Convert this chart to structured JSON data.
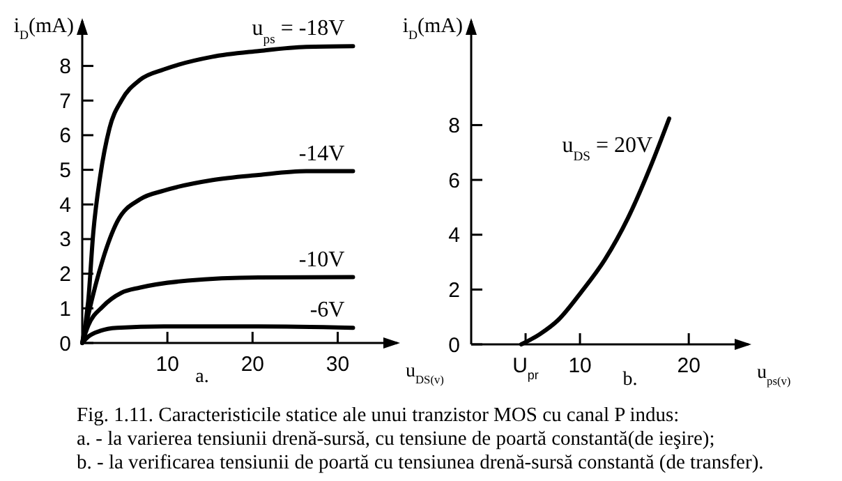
{
  "chart_data": [
    {
      "type": "line",
      "xlabel": "u$_{DS(v)}$",
      "ylabel": "i$_{D}$(mA)",
      "xlim": [
        0,
        37
      ],
      "ylim": [
        0,
        9.3
      ],
      "xticks": [
        10,
        20,
        30
      ],
      "yticks": [
        0,
        1,
        2,
        3,
        4,
        5,
        6,
        7,
        8
      ],
      "grid": false,
      "marker": "none",
      "line_style": "solid",
      "annotations": [
        "a."
      ],
      "series": [
        {
          "name": "u$_{ps}$ = -18V",
          "color": "#000000",
          "x": [
            0,
            0.7,
            1.3,
            2.1,
            3.2,
            4.6,
            6.8,
            9.6,
            15.2,
            20.7,
            26.3,
            31.8
          ],
          "values": [
            0,
            1.2,
            3.2,
            4.8,
            6.2,
            7.0,
            7.6,
            7.9,
            8.26,
            8.43,
            8.55,
            8.57
          ]
        },
        {
          "name": "-14V",
          "color": "#000000",
          "x": [
            0,
            0.7,
            2.4,
            4.1,
            6.8,
            9.6,
            15.2,
            20.7,
            26.3,
            31.8
          ],
          "values": [
            0,
            0.8,
            2.4,
            3.5,
            4.15,
            4.4,
            4.7,
            4.85,
            4.96,
            4.96
          ]
        },
        {
          "name": "-10V",
          "color": "#000000",
          "x": [
            0,
            0.7,
            2.4,
            4.6,
            6.8,
            12.4,
            20.7,
            31.8
          ],
          "values": [
            0,
            0.5,
            1.05,
            1.45,
            1.6,
            1.8,
            1.89,
            1.9
          ]
        },
        {
          "name": "-6V",
          "color": "#000000",
          "x": [
            0,
            0.7,
            2.1,
            4.1,
            9.6,
            20.7,
            31.8
          ],
          "values": [
            0,
            0.18,
            0.35,
            0.44,
            0.48,
            0.48,
            0.44
          ]
        }
      ]
    },
    {
      "type": "line",
      "xlabel": "u$_{ps(v)}$",
      "ylabel": "i$_{D}$(mA)",
      "xlim": [
        0,
        25.5
      ],
      "ylim": [
        0,
        11.8
      ],
      "xticks": [
        {
          "value": 5,
          "label": "U$_{pr}$"
        },
        10,
        20
      ],
      "yticks": [
        0,
        2,
        4,
        6,
        8
      ],
      "grid": false,
      "marker": "none",
      "line_style": "solid",
      "annotations": [
        "b."
      ],
      "series": [
        {
          "name": "u$_{DS}$ = 20V",
          "color": "#000000",
          "x": [
            4.6,
            6.3,
            8.0,
            10.1,
            12.3,
            14.4,
            16.5,
            18.2
          ],
          "values": [
            0,
            0.37,
            0.89,
            1.9,
            3.1,
            4.6,
            6.5,
            8.24
          ]
        }
      ]
    },
    {
      "type": "other",
      "annotations": [
        "Fig. 1.11. Caracteristicile statice ale unui tranzistor MOS cu canal P indus:",
        "a. - la varierea tensiunii drenă-sursă, cu tensiune de poartă constantă(de ieşire);",
        "b. - la verificarea tensiunii de poartă cu tensiunea drenă-sursă constantă (de transfer)."
      ]
    }
  ]
}
